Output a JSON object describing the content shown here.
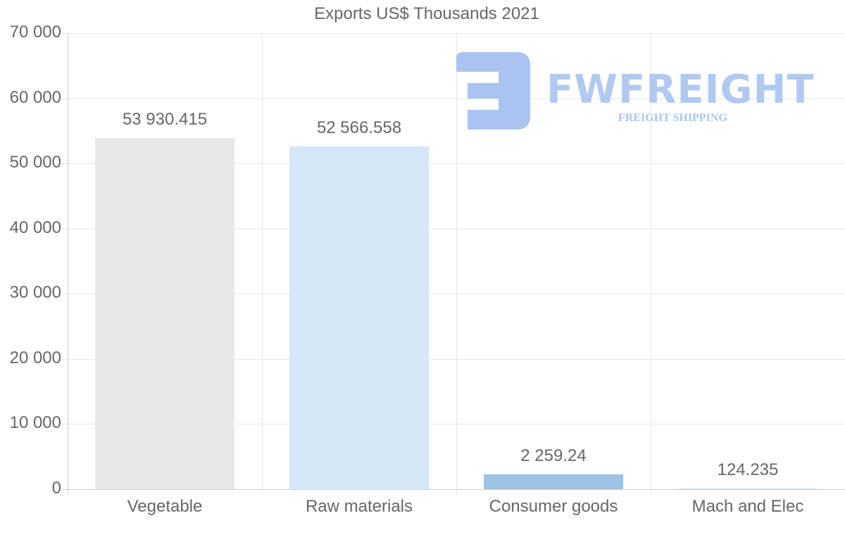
{
  "chart_data": {
    "type": "bar",
    "title": "Exports US$ Thousands 2021",
    "xlabel": "",
    "ylabel": "",
    "categories": [
      "Vegetable",
      "Raw materials",
      "Consumer goods",
      "Mach and Elec"
    ],
    "values": [
      53930.415,
      52566.558,
      2259.24,
      124.235
    ],
    "value_labels": [
      "53 930.415",
      "52 566.558",
      "2 259.24",
      "124.235"
    ],
    "colors": [
      "#e8e8e8",
      "#d6e7f8",
      "#9dc3e6",
      "#c9e6f2"
    ],
    "ylim": [
      0,
      70000
    ],
    "yticks": [
      0,
      10000,
      20000,
      30000,
      40000,
      50000,
      60000,
      70000
    ],
    "ytick_labels": [
      "0",
      "10 000",
      "20 000",
      "30 000",
      "40 000",
      "50 000",
      "60 000",
      "70 000"
    ],
    "grid": true,
    "legend": "none"
  },
  "watermark": {
    "brand": "FWFREIGHT",
    "tagline": "FREIGHT SHIPPING",
    "color": "#a9c4f0"
  }
}
